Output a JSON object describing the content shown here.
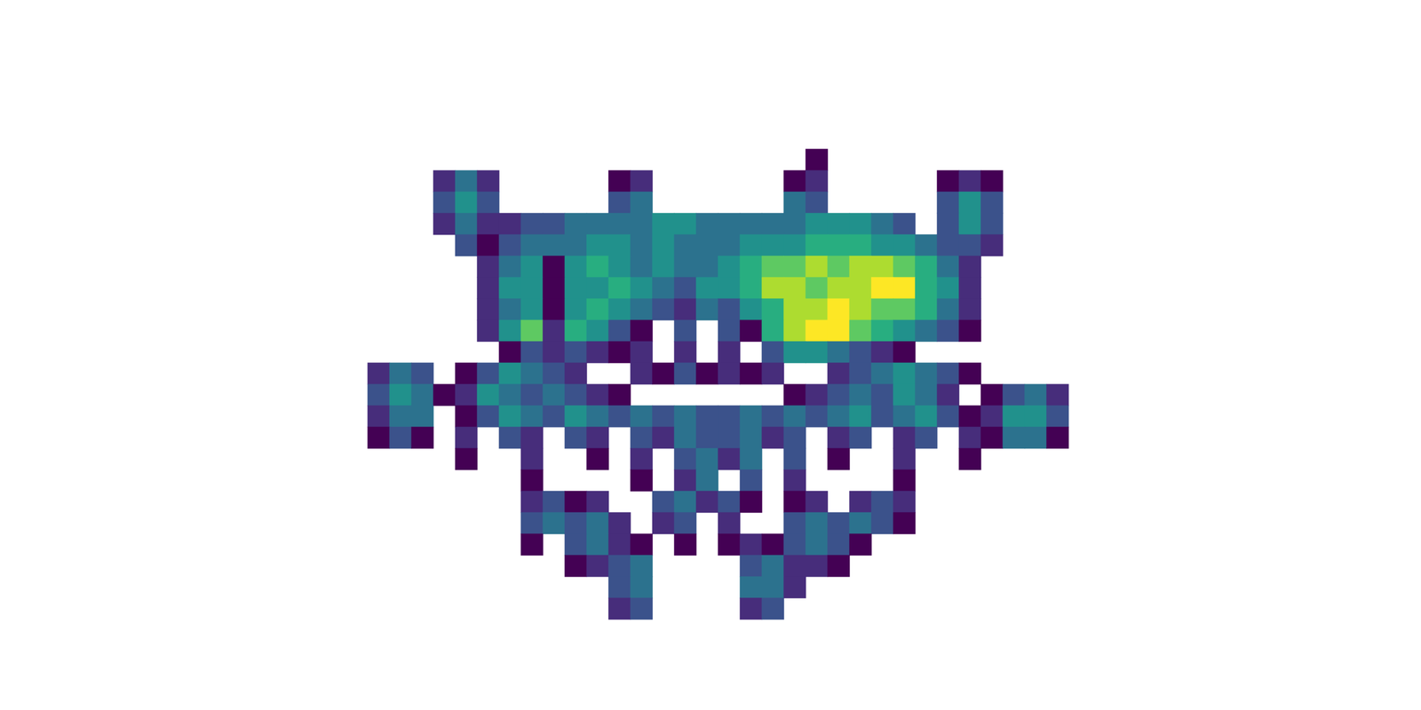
{
  "chart_data": {
    "type": "heatmap",
    "tick_labels": false,
    "color": "viridis",
    "cells": [
      [
        null,
        null,
        null,
        null,
        null,
        null,
        null,
        null,
        null,
        null,
        null,
        null,
        null,
        null,
        null,
        null,
        null,
        null,
        null,
        null,
        1,
        null,
        null,
        null,
        null,
        null,
        null,
        null,
        null,
        null,
        null,
        null
      ],
      [
        null,
        null,
        null,
        2,
        4,
        2,
        null,
        null,
        null,
        null,
        null,
        1,
        2,
        null,
        null,
        null,
        null,
        null,
        null,
        1,
        2,
        null,
        null,
        null,
        null,
        null,
        1,
        2,
        1,
        null,
        null,
        null
      ],
      [
        null,
        null,
        null,
        3,
        5,
        3,
        null,
        null,
        null,
        null,
        null,
        3,
        4,
        null,
        null,
        null,
        null,
        null,
        null,
        4,
        3,
        null,
        null,
        null,
        null,
        null,
        3,
        5,
        3,
        null,
        null,
        null
      ],
      [
        null,
        null,
        null,
        2,
        4,
        2,
        2,
        3,
        3,
        4,
        4,
        4,
        4,
        5,
        5,
        4,
        4,
        4,
        4,
        4,
        5,
        5,
        5,
        4,
        3,
        null,
        3,
        5,
        3,
        null,
        null,
        null
      ],
      [
        null,
        null,
        null,
        null,
        3,
        1,
        3,
        4,
        4,
        4,
        5,
        5,
        4,
        5,
        4,
        4,
        4,
        5,
        5,
        5,
        6,
        6,
        6,
        5,
        5,
        4,
        3,
        3,
        2,
        null,
        null,
        null
      ],
      [
        null,
        null,
        null,
        null,
        null,
        2,
        4,
        5,
        1,
        5,
        6,
        5,
        4,
        5,
        4,
        4,
        5,
        6,
        7,
        7,
        8,
        7,
        8,
        8,
        7,
        6,
        4,
        2,
        null,
        null,
        null,
        null
      ],
      [
        null,
        null,
        null,
        null,
        null,
        2,
        5,
        5,
        1,
        5,
        5,
        6,
        5,
        4,
        3,
        5,
        5,
        6,
        8,
        8,
        7,
        8,
        8,
        9,
        9,
        6,
        5,
        2,
        null,
        null,
        null,
        null
      ],
      [
        null,
        null,
        null,
        null,
        null,
        2,
        4,
        5,
        1,
        5,
        6,
        5,
        4,
        3,
        2,
        4,
        3,
        5,
        6,
        8,
        8,
        9,
        8,
        7,
        7,
        6,
        4,
        2,
        null,
        null,
        null,
        null
      ],
      [
        null,
        null,
        null,
        null,
        null,
        2,
        5,
        7,
        2,
        6,
        5,
        3,
        1,
        null,
        3,
        null,
        3,
        1,
        6,
        8,
        9,
        9,
        7,
        6,
        5,
        4,
        3,
        1,
        null,
        null,
        null,
        null
      ],
      [
        null,
        null,
        null,
        null,
        null,
        null,
        1,
        3,
        2,
        3,
        2,
        1,
        2,
        null,
        2,
        null,
        2,
        null,
        3,
        5,
        5,
        4,
        3,
        2,
        1,
        null,
        null,
        null,
        null,
        null,
        null,
        null
      ],
      [
        2,
        4,
        3,
        null,
        1,
        3,
        5,
        4,
        3,
        2,
        null,
        null,
        2,
        1,
        3,
        1,
        2,
        1,
        2,
        null,
        null,
        2,
        3,
        4,
        5,
        4,
        3,
        1,
        null,
        null,
        null,
        null
      ],
      [
        3,
        5,
        4,
        1,
        2,
        5,
        4,
        3,
        4,
        3,
        2,
        1,
        null,
        null,
        null,
        null,
        null,
        null,
        null,
        1,
        2,
        3,
        4,
        3,
        5,
        4,
        2,
        null,
        1,
        3,
        4,
        2
      ],
      [
        2,
        4,
        4,
        null,
        1,
        3,
        5,
        4,
        3,
        5,
        4,
        3,
        4,
        3,
        4,
        3,
        3,
        4,
        3,
        4,
        3,
        4,
        5,
        3,
        4,
        5,
        3,
        1,
        2,
        5,
        5,
        3
      ],
      [
        1,
        3,
        1,
        null,
        2,
        null,
        3,
        2,
        null,
        3,
        2,
        null,
        3,
        2,
        4,
        3,
        3,
        4,
        2,
        3,
        null,
        2,
        3,
        null,
        2,
        3,
        null,
        2,
        1,
        4,
        4,
        1
      ],
      [
        null,
        null,
        null,
        null,
        1,
        null,
        null,
        2,
        null,
        null,
        1,
        null,
        2,
        null,
        3,
        4,
        2,
        4,
        null,
        3,
        null,
        1,
        null,
        null,
        2,
        null,
        null,
        1,
        null,
        null,
        null,
        null
      ],
      [
        null,
        null,
        null,
        null,
        null,
        null,
        null,
        1,
        null,
        null,
        null,
        null,
        1,
        null,
        2,
        4,
        null,
        3,
        null,
        2,
        null,
        null,
        null,
        null,
        1,
        null,
        null,
        null,
        null,
        null,
        null,
        null
      ],
      [
        null,
        null,
        null,
        null,
        null,
        null,
        null,
        2,
        3,
        1,
        2,
        null,
        null,
        3,
        4,
        2,
        3,
        1,
        null,
        1,
        2,
        null,
        2,
        3,
        2,
        null,
        null,
        null,
        null,
        null,
        null,
        null
      ],
      [
        null,
        null,
        null,
        null,
        null,
        null,
        null,
        3,
        4,
        3,
        4,
        2,
        null,
        2,
        3,
        null,
        2,
        null,
        null,
        3,
        4,
        3,
        4,
        3,
        1,
        null,
        null,
        null,
        null,
        null,
        null,
        null
      ],
      [
        null,
        null,
        null,
        null,
        null,
        null,
        null,
        1,
        null,
        3,
        4,
        2,
        1,
        null,
        1,
        null,
        1,
        2,
        1,
        3,
        4,
        3,
        1,
        null,
        null,
        null,
        null,
        null,
        null,
        null,
        null,
        null
      ],
      [
        null,
        null,
        null,
        null,
        null,
        null,
        null,
        null,
        null,
        1,
        2,
        3,
        4,
        null,
        null,
        null,
        null,
        3,
        4,
        2,
        2,
        1,
        null,
        null,
        null,
        null,
        null,
        null,
        null,
        null,
        null,
        null
      ],
      [
        null,
        null,
        null,
        null,
        null,
        null,
        null,
        null,
        null,
        null,
        null,
        3,
        4,
        null,
        null,
        null,
        null,
        4,
        4,
        2,
        null,
        null,
        null,
        null,
        null,
        null,
        null,
        null,
        null,
        null,
        null,
        null
      ],
      [
        null,
        null,
        null,
        null,
        null,
        null,
        null,
        null,
        null,
        null,
        null,
        2,
        3,
        null,
        null,
        null,
        null,
        2,
        3,
        null,
        null,
        null,
        null,
        null,
        null,
        null,
        null,
        null,
        null,
        null,
        null,
        null
      ]
    ]
  }
}
